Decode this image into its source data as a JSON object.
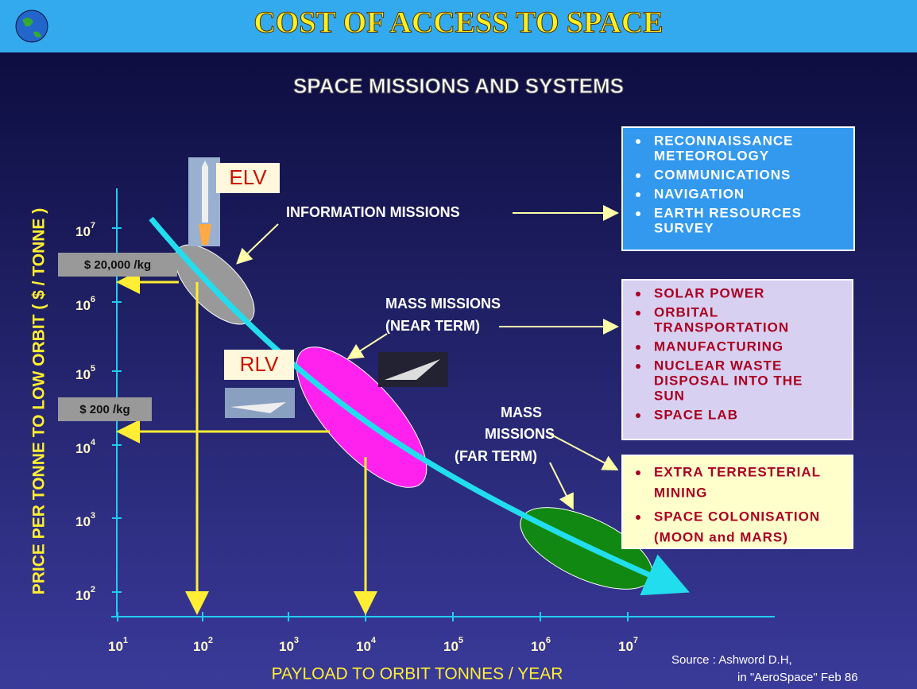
{
  "header": {
    "title": "COST OF ACCESS TO SPACE"
  },
  "subtitle": "SPACE MISSIONS AND SYSTEMS",
  "y_axis": {
    "label": "PRICE PER TONNE TO LOW ORBIT ( $ / TONNE )",
    "ticks": [
      {
        "base": "10",
        "exp": "7"
      },
      {
        "base": "10",
        "exp": "6"
      },
      {
        "base": "10",
        "exp": "5"
      },
      {
        "base": "10",
        "exp": "4"
      },
      {
        "base": "10",
        "exp": "3"
      },
      {
        "base": "10",
        "exp": "2"
      }
    ]
  },
  "x_axis": {
    "label": "PAYLOAD TO ORBIT TONNES / YEAR",
    "ticks": [
      {
        "base": "10",
        "exp": "1"
      },
      {
        "base": "10",
        "exp": "2"
      },
      {
        "base": "10",
        "exp": "3"
      },
      {
        "base": "10",
        "exp": "4"
      },
      {
        "base": "10",
        "exp": "5"
      },
      {
        "base": "10",
        "exp": "6"
      },
      {
        "base": "10",
        "exp": "7"
      }
    ]
  },
  "vehicles": [
    "ELV",
    "RLV"
  ],
  "price_labels": [
    "$ 20,000 /kg",
    "$ 200 /kg"
  ],
  "missions": [
    [
      "INFORMATION MISSIONS"
    ],
    [
      "MASS MISSIONS",
      "(NEAR TERM)"
    ],
    [
      "MASS",
      "MISSIONS",
      "(FAR TERM)"
    ]
  ],
  "boxes": [
    {
      "items": [
        [
          "RECONNAISSANCE",
          "METEOROLOGY"
        ],
        [
          "COMMUNICATIONS"
        ],
        [
          "NAVIGATION"
        ],
        [
          "EARTH RESOURCES",
          "SURVEY"
        ]
      ]
    },
    {
      "items": [
        [
          "SOLAR POWER"
        ],
        [
          "ORBITAL",
          "TRANSPORTATION"
        ],
        [
          "MANUFACTURING"
        ],
        [
          "NUCLEAR WASTE",
          "DISPOSAL INTO THE",
          "SUN"
        ],
        [
          "SPACE LAB"
        ]
      ]
    },
    {
      "items": [
        [
          "EXTRA TERRESTERIAL",
          "MINING"
        ],
        [
          "SPACE COLONISATION",
          "(MOON and MARS)"
        ]
      ]
    }
  ],
  "source": [
    "Source : Ashword D.H,",
    "in \"AeroSpace\" Feb 86"
  ]
}
